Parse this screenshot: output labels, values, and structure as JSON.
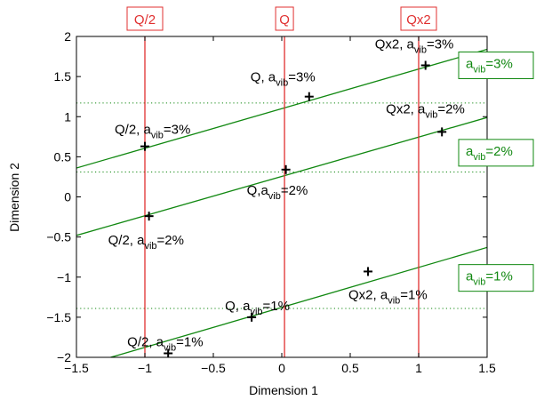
{
  "chart_data": {
    "type": "scatter",
    "title": "",
    "xlabel": "Dimension 1",
    "ylabel": "Dimension 2",
    "xlim": [
      -1.5,
      1.5
    ],
    "ylim": [
      -2,
      2
    ],
    "xticks": [
      "−1.5",
      "−1",
      "−0.5",
      "0",
      "0.5",
      "1",
      "1.5"
    ],
    "xtick_values": [
      -1.5,
      -1,
      -0.5,
      0,
      0.5,
      1,
      1.5
    ],
    "yticks": [
      "−2",
      "−1.5",
      "−1",
      "−0.5",
      "0",
      "0.5",
      "1",
      "1.5",
      "2"
    ],
    "ytick_values": [
      -2,
      -1.5,
      -1,
      -0.5,
      0,
      0.5,
      1,
      1.5,
      2
    ],
    "grid": false,
    "colors": {
      "axes": "#000000",
      "vertical": "#e03030",
      "line": "#118811",
      "dotted": "#118811",
      "marker": "#000000"
    },
    "points": [
      {
        "x": -1.0,
        "y": 0.63,
        "prefix": "Q/2, a",
        "sub": "vib",
        "suffix": "=3%"
      },
      {
        "x": 0.2,
        "y": 1.25,
        "prefix": "Q, a",
        "sub": "vib",
        "suffix": "=3%"
      },
      {
        "x": 1.05,
        "y": 1.64,
        "prefix": "Qx2, a",
        "sub": "vib",
        "suffix": "=3%"
      },
      {
        "x": -0.97,
        "y": -0.24,
        "prefix": "Q/2, a",
        "sub": "vib",
        "suffix": "=2%"
      },
      {
        "x": 0.03,
        "y": 0.34,
        "prefix": "Q,a",
        "sub": "vib",
        "suffix": "=2%"
      },
      {
        "x": 1.17,
        "y": 0.81,
        "prefix": "Qx2, a",
        "sub": "vib",
        "suffix": "=2%"
      },
      {
        "x": -0.83,
        "y": -1.95,
        "prefix": "Q/2, a",
        "sub": "vib",
        "suffix": "=1%"
      },
      {
        "x": -0.22,
        "y": -1.5,
        "prefix": "Q, a",
        "sub": "vib",
        "suffix": "=1%"
      },
      {
        "x": 0.63,
        "y": -0.93,
        "prefix": "Qx2, a",
        "sub": "vib",
        "suffix": "=1%"
      }
    ],
    "vertical_lines": [
      {
        "x": -1.0,
        "label": "Q/2"
      },
      {
        "x": 0.02,
        "label": "Q"
      },
      {
        "x": 1.0,
        "label": "Qx2"
      }
    ],
    "fit_lines": [
      {
        "x1": -1.5,
        "y1": 0.36,
        "x2": 1.5,
        "y2": 1.84,
        "label_prefix": "a",
        "label_sub": "vib",
        "label_suffix": "=3%",
        "label_y": 1.64
      },
      {
        "x1": -1.5,
        "y1": -0.48,
        "x2": 1.5,
        "y2": 0.99,
        "label_prefix": "a",
        "label_sub": "vib",
        "label_suffix": "=2%",
        "label_y": 0.55
      },
      {
        "x1": -1.25,
        "y1": -2.0,
        "x2": 1.5,
        "y2": -0.63,
        "label_prefix": "a",
        "label_sub": "vib",
        "label_suffix": "=1%",
        "label_y": -1.01
      }
    ],
    "dotted_lines": [
      1.17,
      0.31,
      -1.39
    ]
  }
}
